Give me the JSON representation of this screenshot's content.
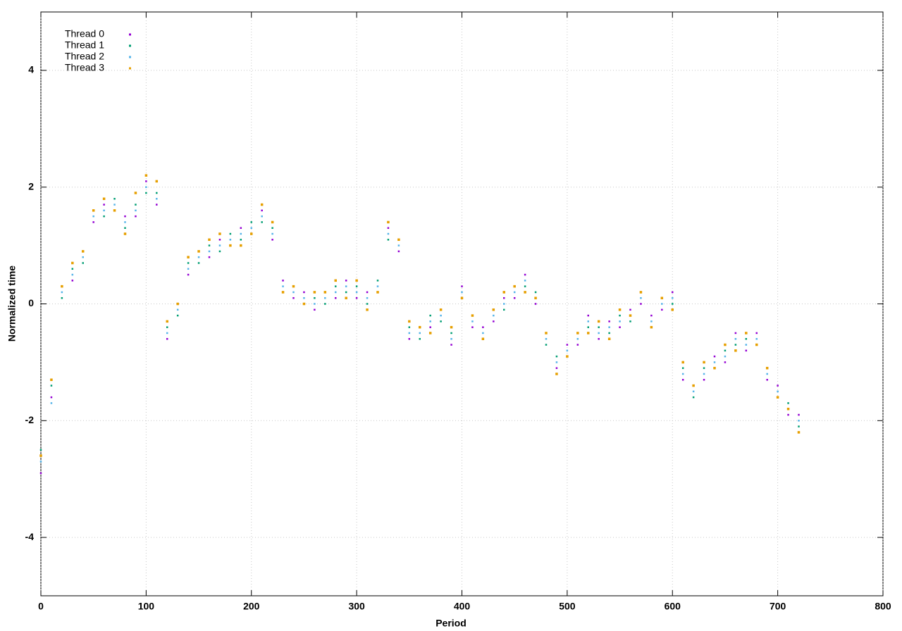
{
  "chart_data": {
    "type": "scatter",
    "xlabel": "Period",
    "ylabel": "Normalized time",
    "xlim": [
      0,
      800
    ],
    "xticks": [
      0,
      100,
      200,
      300,
      400,
      500,
      600,
      700,
      800
    ],
    "ylim": [
      -5,
      5
    ],
    "yticks": [
      -4,
      -2,
      0,
      2,
      4
    ],
    "grid": true,
    "legend": "top-left",
    "x": [
      0,
      10,
      20,
      30,
      40,
      50,
      60,
      70,
      80,
      90,
      100,
      110,
      120,
      130,
      140,
      150,
      160,
      170,
      180,
      190,
      200,
      210,
      220,
      230,
      240,
      250,
      260,
      270,
      280,
      290,
      300,
      310,
      320,
      330,
      340,
      350,
      360,
      370,
      380,
      390,
      400,
      410,
      420,
      430,
      440,
      450,
      460,
      470,
      480,
      490,
      500,
      510,
      520,
      530,
      540,
      550,
      560,
      570,
      580,
      590,
      600,
      610,
      620,
      630,
      640,
      650,
      660,
      670,
      680,
      690,
      700,
      710,
      720
    ],
    "series": [
      {
        "name": "Thread 0",
        "color": "#9400d3",
        "values": [
          -2.9,
          -1.6,
          0.3,
          0.4,
          0.9,
          1.4,
          1.7,
          1.6,
          1.5,
          1.5,
          2.1,
          1.7,
          -0.6,
          0.0,
          0.5,
          0.9,
          0.8,
          1.1,
          1.0,
          1.3,
          1.2,
          1.6,
          1.1,
          0.4,
          0.1,
          0.2,
          -0.1,
          0.2,
          0.1,
          0.4,
          0.1,
          0.2,
          0.2,
          1.3,
          0.9,
          -0.6,
          -0.4,
          -0.4,
          -0.1,
          -0.7,
          0.3,
          -0.4,
          -0.4,
          -0.3,
          0.1,
          0.1,
          0.5,
          0.0,
          -0.5,
          -1.1,
          -0.7,
          -0.7,
          -0.2,
          -0.6,
          -0.3,
          -0.4,
          -0.1,
          0.0,
          -0.2,
          -0.1,
          0.2,
          -1.3,
          -1.4,
          -1.3,
          -0.9,
          -1.0,
          -0.5,
          -0.8,
          -0.5,
          -1.3,
          -1.4,
          -1.9,
          -1.9
        ]
      },
      {
        "name": "Thread 1",
        "color": "#009e73",
        "values": [
          -2.5,
          -1.4,
          0.1,
          0.6,
          0.7,
          1.6,
          1.5,
          1.8,
          1.3,
          1.7,
          1.9,
          1.9,
          -0.4,
          -0.2,
          0.7,
          0.7,
          1.0,
          0.9,
          1.2,
          1.1,
          1.4,
          1.4,
          1.3,
          0.2,
          0.3,
          0.0,
          0.1,
          0.0,
          0.3,
          0.2,
          0.3,
          0.0,
          0.4,
          1.1,
          1.1,
          -0.4,
          -0.6,
          -0.2,
          -0.3,
          -0.5,
          0.1,
          -0.2,
          -0.6,
          -0.1,
          -0.1,
          0.3,
          0.3,
          0.2,
          -0.7,
          -0.9,
          -0.9,
          -0.5,
          -0.4,
          -0.4,
          -0.5,
          -0.2,
          -0.3,
          0.2,
          -0.4,
          0.1,
          0.0,
          -1.1,
          -1.6,
          -1.1,
          -1.1,
          -0.8,
          -0.7,
          -0.6,
          -0.7,
          -1.1,
          -1.6,
          -1.7,
          -2.1
        ]
      },
      {
        "name": "Thread 2",
        "color": "#56b4e9",
        "values": [
          -2.7,
          -1.7,
          0.2,
          0.5,
          0.8,
          1.5,
          1.6,
          1.7,
          1.4,
          1.6,
          2.0,
          1.8,
          -0.5,
          -0.1,
          0.6,
          0.8,
          0.9,
          1.0,
          1.1,
          1.2,
          1.3,
          1.5,
          1.2,
          0.3,
          0.2,
          0.1,
          0.0,
          0.1,
          0.2,
          0.3,
          0.2,
          0.1,
          0.3,
          1.2,
          1.0,
          -0.5,
          -0.5,
          -0.3,
          -0.2,
          -0.6,
          0.2,
          -0.3,
          -0.5,
          -0.2,
          0.0,
          0.2,
          0.4,
          0.1,
          -0.6,
          -1.0,
          -0.8,
          -0.6,
          -0.3,
          -0.5,
          -0.4,
          -0.3,
          -0.2,
          0.1,
          -0.3,
          0.0,
          0.1,
          -1.2,
          -1.5,
          -1.2,
          -1.0,
          -0.9,
          -0.6,
          -0.7,
          -0.6,
          -1.2,
          -1.5,
          -1.8,
          -2.0
        ]
      },
      {
        "name": "Thread 3",
        "color": "#e69f00",
        "values": [
          -2.6,
          -1.3,
          0.3,
          0.7,
          0.9,
          1.6,
          1.8,
          1.6,
          1.2,
          1.9,
          2.2,
          2.1,
          -0.3,
          0.0,
          0.8,
          0.9,
          1.1,
          1.2,
          1.0,
          1.0,
          1.2,
          1.7,
          1.4,
          0.2,
          0.3,
          0.0,
          0.2,
          0.2,
          0.4,
          0.1,
          0.4,
          -0.1,
          0.2,
          1.4,
          1.1,
          -0.3,
          -0.4,
          -0.5,
          -0.1,
          -0.4,
          0.1,
          -0.2,
          -0.6,
          -0.1,
          0.2,
          0.3,
          0.2,
          0.1,
          -0.5,
          -1.2,
          -0.9,
          -0.5,
          -0.5,
          -0.3,
          -0.6,
          -0.1,
          -0.2,
          0.2,
          -0.4,
          0.1,
          -0.1,
          -1.0,
          -1.4,
          -1.0,
          -1.1,
          -0.7,
          -0.8,
          -0.5,
          -0.7,
          -1.1,
          -1.6,
          -1.8,
          -2.2
        ]
      }
    ]
  }
}
